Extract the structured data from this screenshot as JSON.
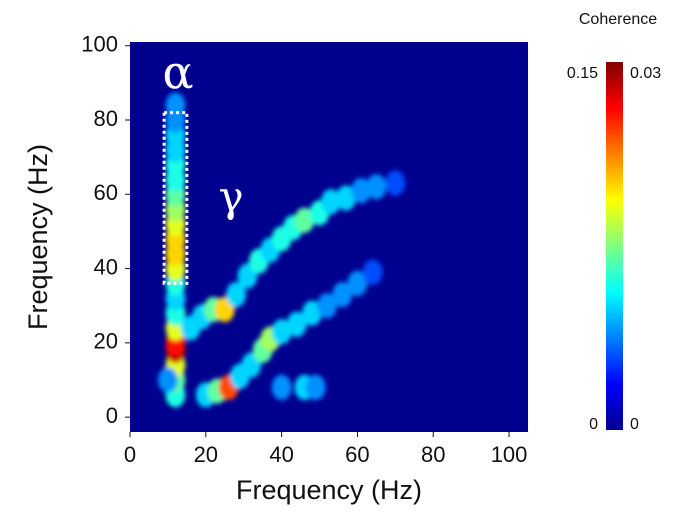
{
  "chart_data": {
    "type": "heatmap",
    "xlabel": "Frequency (Hz)",
    "ylabel": "Frequency (Hz)",
    "xlim": [
      0,
      105
    ],
    "ylim": [
      -4,
      101
    ],
    "xticks": [
      0,
      20,
      40,
      60,
      80,
      100
    ],
    "yticks": [
      0,
      20,
      40,
      60,
      80,
      100
    ],
    "colormap": "jet",
    "annotations": [
      "α",
      "γ"
    ],
    "highlight": {
      "xlim": [
        9,
        15
      ],
      "ylim": [
        36,
        82
      ]
    },
    "colorbar": {
      "title": "Coherence",
      "left_ticks": [
        0,
        0.15
      ],
      "right_ticks": [
        0,
        0.03
      ]
    },
    "x": [
      12,
      12,
      12,
      12,
      12,
      12,
      12,
      12,
      12,
      12,
      12,
      12,
      12,
      12,
      12,
      12,
      12,
      12,
      12,
      12,
      12,
      16,
      19,
      22,
      25,
      28,
      31,
      34,
      37,
      40,
      43,
      46,
      50,
      53,
      57,
      61,
      65,
      70,
      20,
      23,
      26,
      29,
      32,
      35,
      37,
      40,
      44,
      48,
      52,
      56,
      60,
      64,
      10,
      40,
      46,
      49
    ],
    "y": [
      6,
      10,
      14,
      18,
      20,
      24,
      28,
      32,
      36,
      40,
      44,
      48,
      52,
      56,
      60,
      64,
      68,
      72,
      76,
      80,
      84,
      24,
      27,
      29,
      29,
      33,
      38,
      42,
      45,
      48,
      51,
      53,
      55,
      58,
      59,
      61,
      62,
      63,
      6,
      7,
      8,
      11,
      14,
      18,
      21,
      23,
      25,
      28,
      30,
      33,
      36,
      39,
      10,
      8,
      8,
      8
    ],
    "values": [
      0.06,
      0.07,
      0.09,
      0.14,
      0.13,
      0.09,
      0.06,
      0.05,
      0.06,
      0.09,
      0.1,
      0.1,
      0.09,
      0.08,
      0.07,
      0.06,
      0.06,
      0.05,
      0.05,
      0.04,
      0.04,
      0.05,
      0.05,
      0.07,
      0.1,
      0.05,
      0.05,
      0.06,
      0.05,
      0.06,
      0.06,
      0.07,
      0.06,
      0.05,
      0.05,
      0.04,
      0.04,
      0.03,
      0.05,
      0.07,
      0.12,
      0.05,
      0.05,
      0.07,
      0.08,
      0.05,
      0.05,
      0.05,
      0.04,
      0.04,
      0.04,
      0.03,
      0.04,
      0.04,
      0.05,
      0.04
    ]
  }
}
